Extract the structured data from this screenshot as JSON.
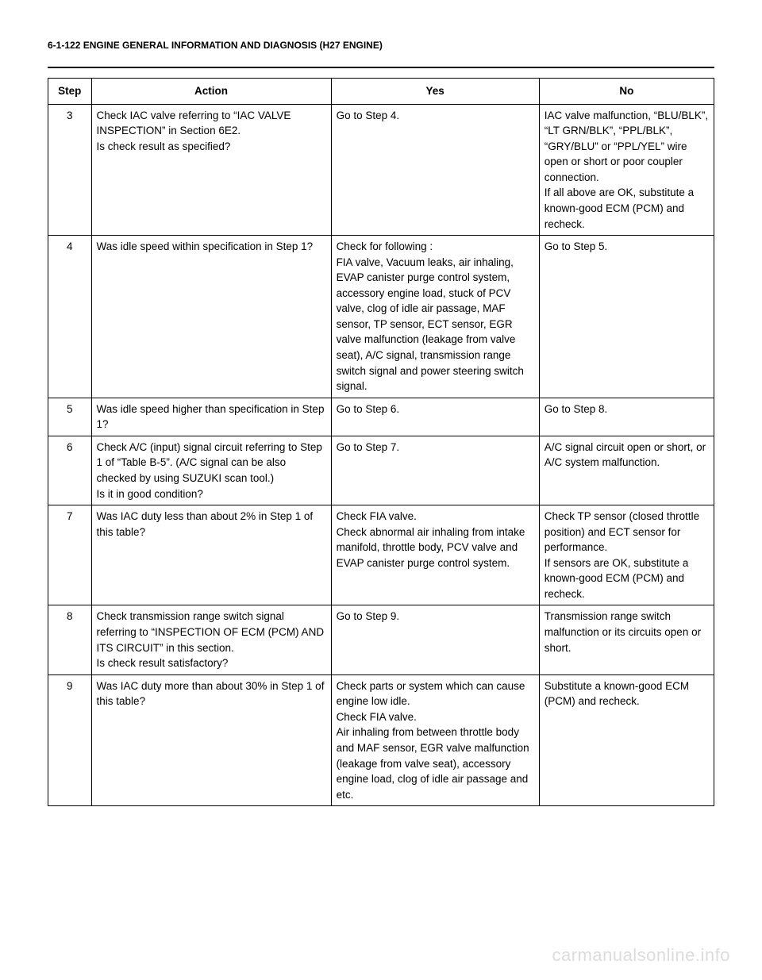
{
  "page_header": "6-1-122 ENGINE GENERAL INFORMATION AND DIAGNOSIS (H27 ENGINE)",
  "table": {
    "columns": {
      "step": "Step",
      "action": "Action",
      "yes": "Yes",
      "no": "No"
    },
    "rows": [
      {
        "step": "3",
        "action": "Check IAC valve referring to “IAC VALVE INSPECTION” in Section 6E2.\nIs check result as specified?",
        "yes": "Go to Step 4.",
        "no": "IAC valve malfunction, “BLU/BLK”, “LT GRN/BLK”, “PPL/BLK”, “GRY/BLU” or “PPL/YEL” wire open or short or poor coupler connection.\nIf all above are OK, substitute a known-good ECM (PCM) and recheck."
      },
      {
        "step": "4",
        "action": "Was idle speed within specification in Step 1?",
        "yes": "Check for following :\nFIA valve, Vacuum leaks, air inhaling, EVAP canister purge control system, accessory engine load, stuck of PCV valve, clog of idle air passage, MAF sensor, TP sensor, ECT sensor, EGR valve malfunction (leakage from valve seat), A/C signal, transmission range switch signal and power steering switch signal.",
        "no": "Go to Step 5."
      },
      {
        "step": "5",
        "action": "Was idle speed higher than specification in Step 1?",
        "yes": "Go to Step 6.",
        "no": "Go to Step 8."
      },
      {
        "step": "6",
        "action": "Check A/C (input) signal circuit referring to Step 1 of “Table B-5”. (A/C signal can be also checked by using SUZUKI scan tool.)\nIs it in good condition?",
        "yes": "Go to Step 7.",
        "no": "A/C signal circuit open or short, or A/C system malfunction."
      },
      {
        "step": "7",
        "action": "Was IAC duty less than about 2% in Step 1 of this table?",
        "yes": "Check FIA valve.\nCheck abnormal air inhaling from intake manifold, throttle body, PCV valve and EVAP canister purge control system.",
        "no": "Check TP sensor (closed throttle position) and ECT sensor for performance.\nIf sensors are OK, substitute a known-good ECM (PCM) and recheck."
      },
      {
        "step": "8",
        "action": "Check transmission range switch signal referring to “INSPECTION OF ECM (PCM) AND ITS CIRCUIT” in this section.\nIs check result satisfactory?",
        "yes": "Go to Step 9.",
        "no": "Transmission range switch malfunction or its circuits open or short."
      },
      {
        "step": "9",
        "action": "Was IAC duty more than about 30% in Step 1 of this table?",
        "yes": "Check parts or system which can cause engine low idle.\nCheck FIA valve.\nAir inhaling from between throttle body and MAF sensor, EGR valve malfunction (leakage from valve seat), accessory engine load, clog of idle air passage and etc.",
        "no": "Substitute a known-good ECM (PCM) and recheck."
      }
    ]
  },
  "watermark": "carmanualsonline.info"
}
